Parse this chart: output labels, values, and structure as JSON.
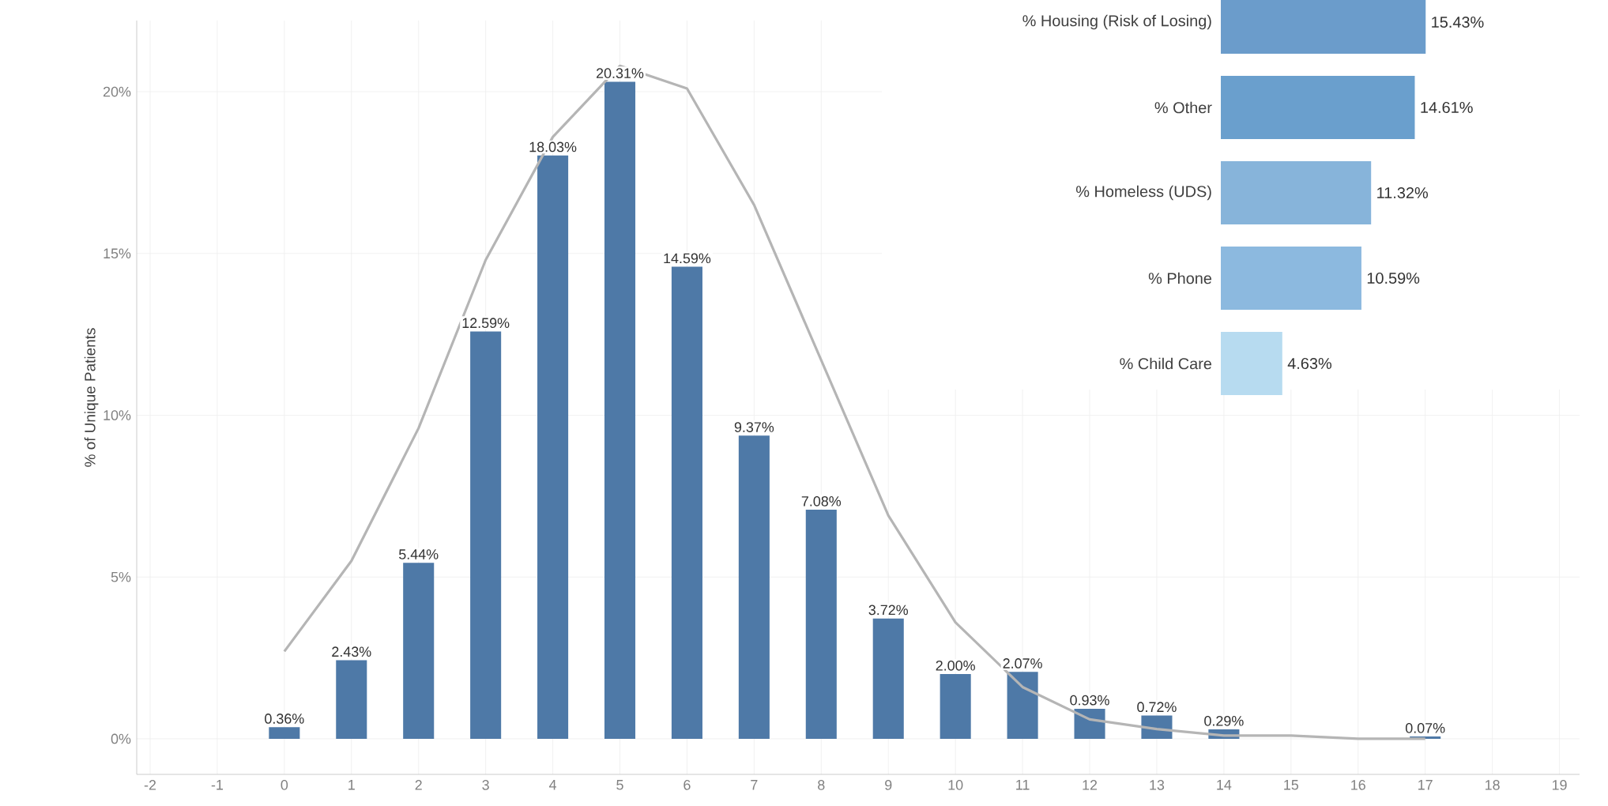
{
  "chart_data": [
    {
      "type": "bar",
      "ylabel": "% of Unique Patients",
      "series": [
        {
          "type": "bar",
          "color": "#4e79a7",
          "x": [
            0,
            1,
            2,
            3,
            4,
            5,
            6,
            7,
            8,
            9,
            10,
            11,
            12,
            13,
            14,
            17
          ],
          "values": [
            0.36,
            2.43,
            5.44,
            12.59,
            18.03,
            20.31,
            14.59,
            9.37,
            7.08,
            3.72,
            2.0,
            2.07,
            0.93,
            0.72,
            0.29,
            0.07
          ],
          "value_labels": [
            "0.36%",
            "2.43%",
            "5.44%",
            "12.59%",
            "18.03%",
            "20.31%",
            "14.59%",
            "9.37%",
            "7.08%",
            "3.72%",
            "2.00%",
            "2.07%",
            "0.93%",
            "0.72%",
            "0.29%",
            "0.07%"
          ]
        },
        {
          "type": "line",
          "color": "#b5b5b5",
          "x": [
            0,
            1,
            2,
            3,
            4,
            5,
            6,
            7,
            8,
            9,
            10,
            11,
            12,
            13,
            14,
            15,
            16,
            17
          ],
          "values": [
            2.7,
            5.5,
            9.6,
            14.8,
            18.6,
            20.8,
            20.1,
            16.5,
            11.7,
            6.9,
            3.6,
            1.6,
            0.6,
            0.3,
            0.1,
            0.1,
            0.0,
            0.0
          ]
        }
      ],
      "xlim": [
        -2.2,
        19.3
      ],
      "xticks": [
        -2,
        -1,
        0,
        1,
        2,
        3,
        4,
        5,
        6,
        7,
        8,
        9,
        10,
        11,
        12,
        13,
        14,
        15,
        16,
        17,
        18,
        19
      ],
      "ylim": [
        -1.1,
        22.2
      ],
      "yticks": [
        {
          "value": 0,
          "label": "0%"
        },
        {
          "value": 5,
          "label": "5%"
        },
        {
          "value": 10,
          "label": "10%"
        },
        {
          "value": 15,
          "label": "15%"
        },
        {
          "value": 20,
          "label": "20%"
        }
      ],
      "grid": true
    },
    {
      "type": "bar",
      "orientation": "horizontal",
      "tick_labels": "y",
      "categories": [
        "% Housing (Risk of Losing)",
        "% Other",
        "% Homeless (UDS)",
        "% Phone",
        "% Child Care"
      ],
      "values": [
        15.43,
        14.61,
        11.32,
        10.59,
        4.63
      ],
      "value_labels": [
        "15.43%",
        "14.61%",
        "11.32%",
        "10.59%",
        "4.63%"
      ],
      "colors": [
        "#6b9ccb",
        "#6a9fcd",
        "#87b4da",
        "#8cb9df",
        "#b7dbf0"
      ]
    }
  ]
}
